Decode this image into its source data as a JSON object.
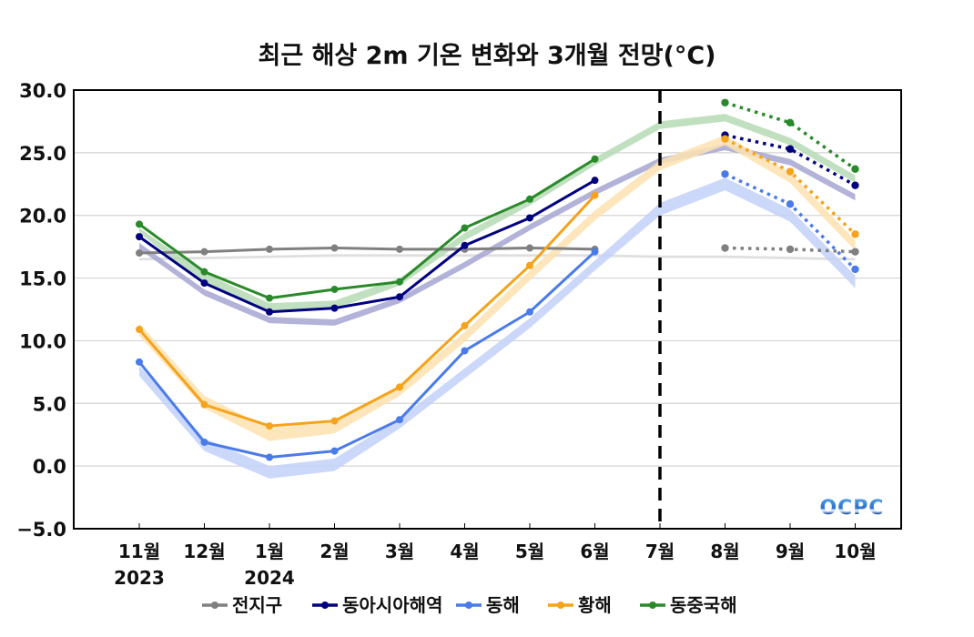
{
  "chart_data": {
    "type": "line",
    "title": "최근 해상 2m 기온 변화와 3개월 전망(°C)",
    "xlabel": "",
    "ylabel": "",
    "ylim": [
      -5.0,
      30.0
    ],
    "yticks": [
      "30.0",
      "25.0",
      "20.0",
      "15.0",
      "10.0",
      "5.0",
      "0.0",
      "−5.0"
    ],
    "ytick_values": [
      30,
      25,
      20,
      15,
      10,
      5,
      0,
      -5
    ],
    "grid": "horizontal",
    "categories": [
      "11월",
      "12월",
      "1월",
      "2월",
      "3월",
      "4월",
      "5월",
      "6월",
      "7월",
      "8월",
      "9월",
      "10월"
    ],
    "year_labels": [
      {
        "category_index": 0,
        "text": "2023"
      },
      {
        "category_index": 2,
        "text": "2024"
      }
    ],
    "divider": {
      "category": "7월",
      "style": "dashed"
    },
    "observed_range": [
      0,
      7
    ],
    "forecast_range": [
      9,
      11
    ],
    "legend_position": "bottom",
    "series": [
      {
        "name": "전지구",
        "color": "#808080",
        "observed": [
          17.0,
          17.1,
          17.3,
          17.4,
          17.3,
          17.3,
          17.4,
          17.3,
          null,
          null,
          null,
          null
        ],
        "forecast": [
          null,
          null,
          null,
          null,
          null,
          null,
          null,
          null,
          null,
          17.4,
          17.3,
          17.1
        ],
        "climatology_low": [
          16.4,
          16.5,
          16.6,
          16.7,
          16.7,
          16.7,
          16.7,
          16.7,
          16.6,
          16.6,
          16.5,
          16.4
        ],
        "climatology_high": [
          16.6,
          16.7,
          16.8,
          16.9,
          16.9,
          16.9,
          16.9,
          16.9,
          16.8,
          16.8,
          16.7,
          16.6
        ],
        "band_color": "#d9d9d9"
      },
      {
        "name": "동아시아해역",
        "color": "#000080",
        "observed": [
          18.3,
          14.6,
          12.3,
          12.6,
          13.5,
          17.6,
          19.8,
          22.8,
          null,
          null,
          null,
          null
        ],
        "forecast": [
          null,
          null,
          null,
          null,
          null,
          null,
          null,
          null,
          null,
          26.4,
          25.3,
          22.4
        ],
        "climatology_low": [
          17.3,
          13.6,
          11.4,
          11.2,
          13.0,
          15.8,
          18.8,
          21.6,
          24.1,
          25.2,
          24.0,
          21.2
        ],
        "climatology_high": [
          17.8,
          14.1,
          11.9,
          11.7,
          13.5,
          16.3,
          19.3,
          22.1,
          24.6,
          25.7,
          24.5,
          21.7
        ],
        "band_color": "#a6a6d2"
      },
      {
        "name": "동해",
        "color": "#4a7bea",
        "observed": [
          8.3,
          1.9,
          0.7,
          1.2,
          3.7,
          9.2,
          12.3,
          17.1,
          null,
          null,
          null,
          null
        ],
        "forecast": [
          null,
          null,
          null,
          null,
          null,
          null,
          null,
          null,
          null,
          23.3,
          20.9,
          15.7
        ],
        "climatology_low": [
          7.2,
          1.2,
          -1.0,
          -0.4,
          3.0,
          7.0,
          11.0,
          15.6,
          20.0,
          22.0,
          19.5,
          14.2
        ],
        "climatology_high": [
          8.0,
          2.2,
          0.0,
          0.6,
          3.8,
          7.8,
          11.8,
          16.4,
          21.0,
          23.0,
          20.5,
          15.2
        ],
        "band_color": "#c3d1f8"
      },
      {
        "name": "황해",
        "color": "#f5a31a",
        "observed": [
          10.9,
          4.9,
          3.2,
          3.6,
          6.3,
          11.2,
          16.0,
          21.6,
          null,
          null,
          null,
          null
        ],
        "forecast": [
          null,
          null,
          null,
          null,
          null,
          null,
          null,
          null,
          null,
          26.1,
          23.5,
          18.5
        ],
        "climatology_low": [
          10.4,
          4.6,
          2.0,
          2.6,
          5.6,
          9.9,
          14.8,
          19.6,
          23.6,
          25.6,
          22.6,
          17.2
        ],
        "climatology_high": [
          11.4,
          5.6,
          3.0,
          3.6,
          6.4,
          10.7,
          15.6,
          20.4,
          24.4,
          26.4,
          23.4,
          18.0
        ],
        "band_color": "#fde2b0"
      },
      {
        "name": "동중국해",
        "color": "#2a8a2a",
        "observed": [
          19.3,
          15.5,
          13.4,
          14.1,
          14.7,
          19.0,
          21.3,
          24.5,
          null,
          null,
          null,
          null
        ],
        "forecast": [
          null,
          null,
          null,
          null,
          null,
          null,
          null,
          null,
          null,
          29.0,
          27.4,
          23.7
        ],
        "climatology_low": [
          18.6,
          14.6,
          12.4,
          12.5,
          14.4,
          18.0,
          20.8,
          24.0,
          26.9,
          27.5,
          25.6,
          22.6
        ],
        "climatology_high": [
          19.0,
          15.4,
          13.0,
          13.2,
          15.0,
          18.6,
          21.4,
          24.6,
          27.5,
          28.1,
          26.2,
          23.2
        ],
        "band_color": "#b5dbb5"
      }
    ]
  },
  "logo": {
    "text": "OCPC"
  }
}
